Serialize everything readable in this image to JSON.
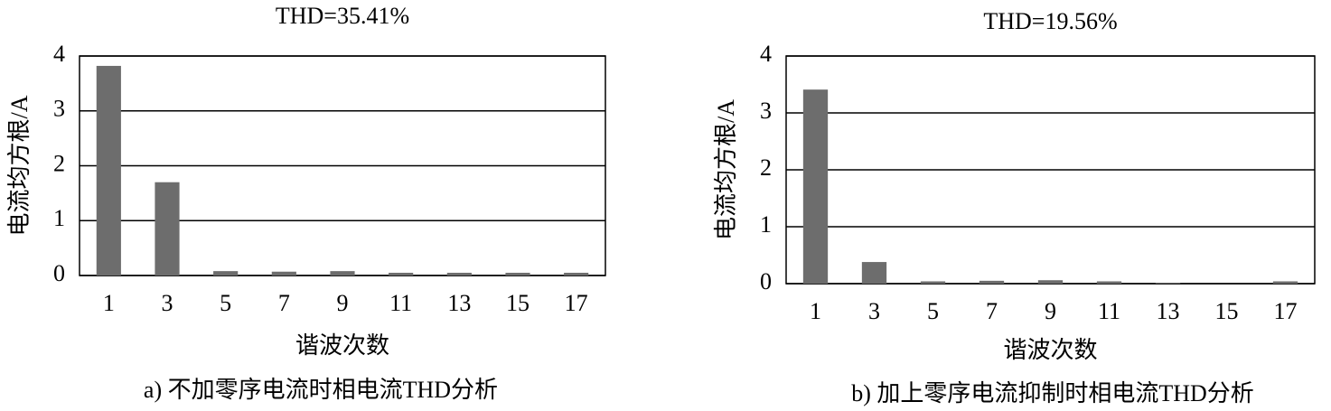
{
  "chart_data": [
    {
      "type": "bar",
      "title": "THD=35.41%",
      "y_label": "电流均方根/A",
      "x_label": "谐波次数",
      "caption": "a) 不加零序电流时相电流THD分析",
      "categories": [
        "1",
        "3",
        "5",
        "7",
        "9",
        "11",
        "13",
        "15",
        "17"
      ],
      "values": [
        3.82,
        1.7,
        0.08,
        0.07,
        0.08,
        0.05,
        0.05,
        0.05,
        0.05
      ],
      "color": "#6d6d6d",
      "ylim": [
        0,
        4
      ],
      "yticks": [
        0,
        1,
        2,
        3,
        4
      ],
      "grid": true
    },
    {
      "type": "bar",
      "title": "THD=19.56%",
      "y_label": "电流均方根/A",
      "x_label": "谐波次数",
      "caption": "b) 加上零序电流抑制时相电流THD分析",
      "categories": [
        "1",
        "3",
        "5",
        "7",
        "9",
        "11",
        "13",
        "15",
        "17"
      ],
      "values": [
        3.41,
        0.38,
        0.04,
        0.05,
        0.06,
        0.04,
        0.01,
        0,
        0.04
      ],
      "color": "#6d6d6d",
      "ylim": [
        0,
        4
      ],
      "yticks": [
        0,
        1,
        2,
        3,
        4
      ],
      "grid": true
    }
  ]
}
